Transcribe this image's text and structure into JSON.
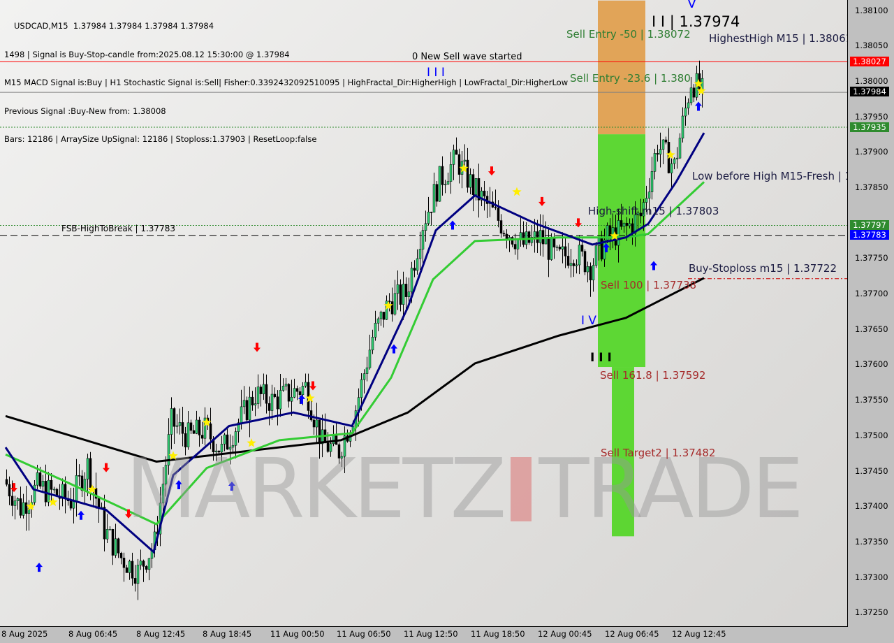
{
  "header": {
    "symbol_line": "USDCAD,M15  1.37984 1.37984 1.37984 1.37984",
    "signal_line": "1498 | Signal is Buy-Stop-candle from:2025.08.12 15:30:00 @ 1.37984",
    "macd_line": "M15 MACD Signal is:Buy | H1 Stochastic Signal is:Sell| Fisher:0.3392432092510095 | HighFractal_Dir:HigherHigh | LowFractal_Dir:HigherLow",
    "previous_line": "Previous Signal :Buy-New from: 1.38008",
    "bars_line": "Bars: 12186 | ArraySize UpSignal: 12186 | Stoploss:1.37903 | ResetLoop:false"
  },
  "labels": {
    "new_sell_wave": "0 New Sell wave started",
    "wave_iii_top": "I I I",
    "wave_ii": "I I | 1.37974",
    "wave_v": "V",
    "wave_iv": "I V",
    "wave_iii_low": "I I I",
    "sell_entry_50": "Sell Entry -50 | 1.38072",
    "sell_entry_236": "Sell Entry -23.6 | 1.380",
    "highest_high": "HighestHigh    M15 | 1.38061",
    "low_before_high": "Low before High    M15-Fresh | 1",
    "high_shift": "High-shift m15 | 1.37803",
    "sell_100": "Sell 100 | 1.37738",
    "buy_stoploss": "Buy-Stoploss m15 | 1.37722",
    "sell_1618": "Sell 161.8 | 1.37592",
    "sell_target2": "Sell Target2 | 1.37482",
    "fsb": "FSB-HighToBreak | 1.37783"
  },
  "watermark": {
    "left": "MARKETZ",
    "right": "TRADE"
  },
  "price_axis": {
    "ticks": [
      "1.38100",
      "1.38050",
      "1.38000",
      "1.37950",
      "1.37900",
      "1.37850",
      "1.37750",
      "1.37700",
      "1.37650",
      "1.37600",
      "1.37550",
      "1.37500",
      "1.37450",
      "1.37400",
      "1.37350",
      "1.37300",
      "1.37250"
    ],
    "badges": [
      {
        "value": "1.38027",
        "color": "#ff0000"
      },
      {
        "value": "1.37984",
        "color": "#000000"
      },
      {
        "value": "1.37935",
        "color": "#2e8b2e"
      },
      {
        "value": "1.37797",
        "color": "#2e8b2e"
      },
      {
        "value": "1.37783",
        "color": "#0000ff"
      }
    ]
  },
  "time_axis": [
    "8 Aug 2025",
    "8 Aug 06:45",
    "8 Aug 12:45",
    "8 Aug 18:45",
    "11 Aug 00:50",
    "11 Aug 06:50",
    "11 Aug 12:50",
    "11 Aug 18:50",
    "12 Aug 00:45",
    "12 Aug 06:45",
    "12 Aug 12:45"
  ],
  "chart_data": {
    "type": "candlestick",
    "title": "USDCAD,M15",
    "ylim": [
      1.37225,
      1.38113
    ],
    "grid": false,
    "x": [
      "8 Aug 00:00",
      "8 Aug 01:30",
      "8 Aug 03:00",
      "8 Aug 04:30",
      "8 Aug 06:00",
      "8 Aug 07:30",
      "8 Aug 09:00",
      "8 Aug 10:30",
      "8 Aug 12:00",
      "8 Aug 13:30",
      "8 Aug 15:00",
      "8 Aug 16:30",
      "8 Aug 18:00",
      "8 Aug 19:30",
      "8 Aug 21:00",
      "8 Aug 22:30",
      "11 Aug 01:00",
      "11 Aug 02:30",
      "11 Aug 04:00",
      "11 Aug 05:30",
      "11 Aug 07:00",
      "11 Aug 08:30",
      "11 Aug 10:00",
      "11 Aug 11:30",
      "11 Aug 13:00",
      "11 Aug 14:30",
      "11 Aug 16:00",
      "11 Aug 17:30",
      "11 Aug 19:00",
      "11 Aug 20:30",
      "11 Aug 22:00",
      "11 Aug 23:30",
      "12 Aug 01:00",
      "12 Aug 02:30",
      "12 Aug 04:00",
      "12 Aug 05:30",
      "12 Aug 07:00",
      "12 Aug 08:30",
      "12 Aug 10:00",
      "12 Aug 11:30",
      "12 Aug 13:00",
      "12 Aug 14:30",
      "12 Aug 15:30"
    ],
    "close": [
      1.3744,
      1.374,
      1.3743,
      1.3742,
      1.3741,
      1.3746,
      1.3737,
      1.3733,
      1.3731,
      1.3735,
      1.3752,
      1.375,
      1.3751,
      1.3748,
      1.3752,
      1.3756,
      1.3755,
      1.3756,
      1.3757,
      1.3749,
      1.3748,
      1.3754,
      1.3764,
      1.3769,
      1.377,
      1.378,
      1.3786,
      1.3789,
      1.3785,
      1.3782,
      1.3779,
      1.3777,
      1.3778,
      1.3775,
      1.3776,
      1.3774,
      1.3778,
      1.3779,
      1.3781,
      1.3791,
      1.3788,
      1.38,
      1.37984
    ],
    "lines": [
      {
        "color": "#000000",
        "points": [
          [
            "8 Aug 00:00",
            1.37529
          ],
          [
            "8 Aug 13:30",
            1.37465
          ],
          [
            "11 Aug 07:00",
            1.37495
          ],
          [
            "11 Aug 13:00",
            1.37534
          ],
          [
            "11 Aug 19:00",
            1.37603
          ],
          [
            "12 Aug 02:30",
            1.37642
          ],
          [
            "12 Aug 08:30",
            1.37667
          ],
          [
            "12 Aug 15:30",
            1.37723
          ]
        ]
      },
      {
        "color": "#33cc33",
        "points": [
          [
            "8 Aug 00:00",
            1.37475
          ],
          [
            "8 Aug 05:30",
            1.37436
          ],
          [
            "8 Aug 13:30",
            1.37377
          ],
          [
            "8 Aug 18:00",
            1.37456
          ],
          [
            "11 Aug 01:30",
            1.37495
          ],
          [
            "11 Aug 08:00",
            1.37505
          ],
          [
            "11 Aug 11:30",
            1.37583
          ],
          [
            "11 Aug 15:15",
            1.37721
          ],
          [
            "11 Aug 19:00",
            1.37775
          ],
          [
            "12 Aug 02:30",
            1.3778
          ],
          [
            "12 Aug 08:30",
            1.3778
          ],
          [
            "12 Aug 10:30",
            1.37785
          ],
          [
            "12 Aug 15:30",
            1.37858
          ]
        ]
      },
      {
        "color": "#000080",
        "points": [
          [
            "8 Aug 00:00",
            1.37485
          ],
          [
            "8 Aug 02:30",
            1.37426
          ],
          [
            "8 Aug 09:00",
            1.37397
          ],
          [
            "8 Aug 13:15",
            1.37338
          ],
          [
            "8 Aug 15:00",
            1.37446
          ],
          [
            "8 Aug 20:00",
            1.37515
          ],
          [
            "11 Aug 02:45",
            1.37534
          ],
          [
            "11 Aug 08:00",
            1.37515
          ],
          [
            "11 Aug 11:30",
            1.37632
          ],
          [
            "11 Aug 13:00",
            1.37682
          ],
          [
            "11 Aug 15:30",
            1.3779
          ],
          [
            "11 Aug 19:00",
            1.37839
          ],
          [
            "12 Aug 00:30",
            1.37799
          ],
          [
            "12 Aug 05:30",
            1.3777
          ],
          [
            "12 Aug 08:30",
            1.3778
          ],
          [
            "12 Aug 10:30",
            1.37799
          ],
          [
            "12 Aug 13:00",
            1.37858
          ],
          [
            "12 Aug 15:30",
            1.37927
          ]
        ]
      }
    ],
    "levels": [
      {
        "price": 1.38027,
        "color": "#ff0000",
        "style": "solid"
      },
      {
        "price": 1.37984,
        "color": "#808080",
        "style": "solid"
      },
      {
        "price": 1.37935,
        "color": "#2e8b2e",
        "style": "dotted"
      },
      {
        "price": 1.37797,
        "color": "#2e8b2e",
        "style": "dotted"
      },
      {
        "price": 1.37783,
        "color": "#000000",
        "style": "dashed"
      },
      {
        "price": 1.37722,
        "color": "#cc0000",
        "style": "dashdot"
      }
    ],
    "zones": [
      {
        "from": "12 Aug 06:00",
        "to": "12 Aug 10:15",
        "top": 1.38113,
        "bottom": 1.37925,
        "color": "#e0a050"
      },
      {
        "from": "12 Aug 06:00",
        "to": "12 Aug 10:15",
        "top": 1.37925,
        "bottom": 1.37598,
        "color": "#55d62a"
      },
      {
        "from": "12 Aug 07:15",
        "to": "12 Aug 09:15",
        "top": 1.37598,
        "bottom": 1.3736,
        "color": "#55d62a"
      }
    ],
    "markers": {
      "stars": [
        [
          "8 Aug 02:15",
          1.37402
        ],
        [
          "8 Aug 04:15",
          1.37408
        ],
        [
          "8 Aug 07:45",
          1.37426
        ],
        [
          "8 Aug 15:00",
          1.37473
        ],
        [
          "8 Aug 18:00",
          1.3752
        ],
        [
          "8 Aug 22:00",
          1.37491
        ],
        [
          "11 Aug 04:15",
          1.37554
        ],
        [
          "11 Aug 11:15",
          1.37684
        ],
        [
          "11 Aug 18:00",
          1.37877
        ],
        [
          "11 Aug 22:45",
          1.37844
        ],
        [
          "12 Aug 07:30",
          1.37782
        ],
        [
          "12 Aug 12:30",
          1.37896
        ],
        [
          "12 Aug 15:00",
          1.37996
        ],
        [
          "12 Aug 15:15",
          1.37986
        ]
      ],
      "buy_arrows": [
        [
          "8 Aug 03:00",
          1.37316
        ],
        [
          "8 Aug 06:45",
          1.37389
        ],
        [
          "8 Aug 15:30",
          1.37432
        ],
        [
          "8 Aug 20:15",
          1.3743
        ],
        [
          "11 Aug 03:30",
          1.37552
        ],
        [
          "11 Aug 11:45",
          1.37623
        ],
        [
          "11 Aug 17:00",
          1.37797
        ],
        [
          "12 Aug 06:45",
          1.37765
        ],
        [
          "12 Aug 11:00",
          1.3774
        ],
        [
          "12 Aug 15:00",
          1.37964
        ]
      ],
      "sell_arrows": [
        [
          "8 Aug 00:45",
          1.37429
        ],
        [
          "8 Aug 09:00",
          1.37457
        ],
        [
          "8 Aug 11:00",
          1.37392
        ],
        [
          "8 Aug 22:30",
          1.37626
        ],
        [
          "11 Aug 04:30",
          1.37572
        ],
        [
          "11 Aug 20:30",
          1.37874
        ],
        [
          "12 Aug 01:00",
          1.37831
        ],
        [
          "12 Aug 04:15",
          1.37801
        ]
      ]
    }
  }
}
